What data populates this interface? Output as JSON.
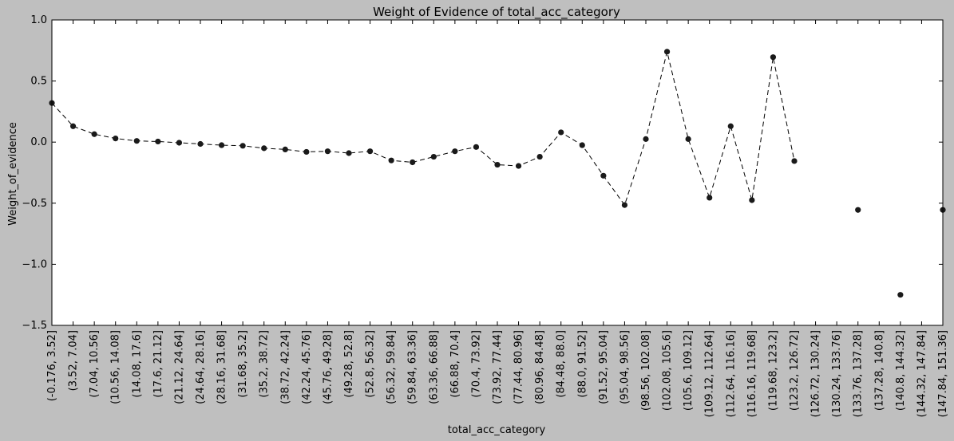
{
  "chart_data": {
    "type": "line",
    "title": "Weight of Evidence of total_acc_category",
    "xlabel": "total_acc_category",
    "ylabel": "Weight_of_evidence",
    "ylim": [
      -1.5,
      1.0
    ],
    "yticks": [
      -1.5,
      -1.0,
      -0.5,
      0.0,
      0.5,
      1.0
    ],
    "ytick_labels": [
      "−1.5",
      "−1.0",
      "−0.5",
      "0.0",
      "0.5",
      "1.0"
    ],
    "grid": false,
    "line_style": "dashed",
    "marker": "circle",
    "colors": {
      "line": "#000000",
      "marker": "#1a1a1a",
      "plot_bg": "#ffffff",
      "figure_bg": "#bfbfbf"
    },
    "categories": [
      "(-0.176, 3.52]",
      "(3.52, 7.04]",
      "(7.04, 10.56]",
      "(10.56, 14.08]",
      "(14.08, 17.6]",
      "(17.6, 21.12]",
      "(21.12, 24.64]",
      "(24.64, 28.16]",
      "(28.16, 31.68]",
      "(31.68, 35.2]",
      "(35.2, 38.72]",
      "(38.72, 42.24]",
      "(42.24, 45.76]",
      "(45.76, 49.28]",
      "(49.28, 52.8]",
      "(52.8, 56.32]",
      "(56.32, 59.84]",
      "(59.84, 63.36]",
      "(63.36, 66.88]",
      "(66.88, 70.4]",
      "(70.4, 73.92]",
      "(73.92, 77.44]",
      "(77.44, 80.96]",
      "(80.96, 84.48]",
      "(84.48, 88.0]",
      "(88.0, 91.52]",
      "(91.52, 95.04]",
      "(95.04, 98.56]",
      "(98.56, 102.08]",
      "(102.08, 105.6]",
      "(105.6, 109.12]",
      "(109.12, 112.64]",
      "(112.64, 116.16]",
      "(116.16, 119.68]",
      "(119.68, 123.2]",
      "(123.2, 126.72]",
      "(126.72, 130.24]",
      "(130.24, 133.76]",
      "(133.76, 137.28]",
      "(137.28, 140.8]",
      "(140.8, 144.32]",
      "(144.32, 147.84]",
      "(147.84, 151.36]"
    ],
    "values": [
      0.32,
      0.13,
      0.065,
      0.03,
      0.01,
      0.005,
      -0.005,
      -0.015,
      -0.025,
      -0.03,
      -0.05,
      -0.06,
      -0.08,
      -0.075,
      -0.09,
      -0.075,
      -0.15,
      -0.165,
      -0.12,
      -0.075,
      -0.04,
      -0.185,
      -0.195,
      -0.12,
      0.08,
      -0.025,
      -0.275,
      -0.515,
      0.025,
      0.74,
      0.025,
      -0.455,
      0.13,
      -0.475,
      0.695,
      -0.155,
      null,
      null,
      -0.555,
      null,
      -1.25,
      null,
      -0.555
    ]
  }
}
